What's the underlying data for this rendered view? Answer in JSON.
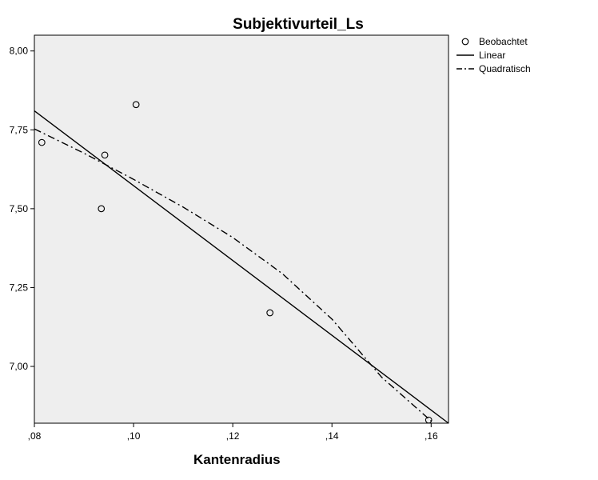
{
  "chart_data": {
    "type": "scatter",
    "title": "Subjektivurteil_Ls",
    "xlabel": "Kantenradius",
    "ylabel": "",
    "xlim": [
      0.08,
      0.1635
    ],
    "ylim": [
      6.82,
      8.05
    ],
    "x_ticks": [
      {
        "value": 0.08,
        "label": ",08"
      },
      {
        "value": 0.1,
        "label": ",10"
      },
      {
        "value": 0.12,
        "label": ",12"
      },
      {
        "value": 0.14,
        "label": ",14"
      },
      {
        "value": 0.16,
        "label": ",16"
      }
    ],
    "y_ticks": [
      {
        "value": 8.0,
        "label": "8,00"
      },
      {
        "value": 7.75,
        "label": "7,75"
      },
      {
        "value": 7.5,
        "label": "7,50"
      },
      {
        "value": 7.25,
        "label": "7,25"
      },
      {
        "value": 7.0,
        "label": "7,00"
      }
    ],
    "grid": false,
    "legend_position": "right",
    "series": [
      {
        "name": "Beobachtet",
        "kind": "scatter",
        "points": [
          {
            "x": 0.0815,
            "y": 7.71
          },
          {
            "x": 0.0935,
            "y": 7.5
          },
          {
            "x": 0.0942,
            "y": 7.67
          },
          {
            "x": 0.1005,
            "y": 7.83
          },
          {
            "x": 0.1275,
            "y": 7.17
          },
          {
            "x": 0.1595,
            "y": 6.83
          }
        ]
      },
      {
        "name": "Linear",
        "kind": "line",
        "points": [
          {
            "x": 0.08,
            "y": 7.81
          },
          {
            "x": 0.1635,
            "y": 6.82
          }
        ]
      },
      {
        "name": "Quadratisch",
        "kind": "dashdot",
        "points": [
          {
            "x": 0.08,
            "y": 7.753
          },
          {
            "x": 0.09,
            "y": 7.676
          },
          {
            "x": 0.1,
            "y": 7.593
          },
          {
            "x": 0.11,
            "y": 7.505
          },
          {
            "x": 0.12,
            "y": 7.409
          },
          {
            "x": 0.13,
            "y": 7.294
          },
          {
            "x": 0.14,
            "y": 7.15
          },
          {
            "x": 0.15,
            "y": 6.966
          },
          {
            "x": 0.16,
            "y": 6.827
          }
        ]
      }
    ],
    "colors": {
      "plot_background": "#eeeeee",
      "marks": "#000000",
      "axis": "#000000"
    }
  }
}
